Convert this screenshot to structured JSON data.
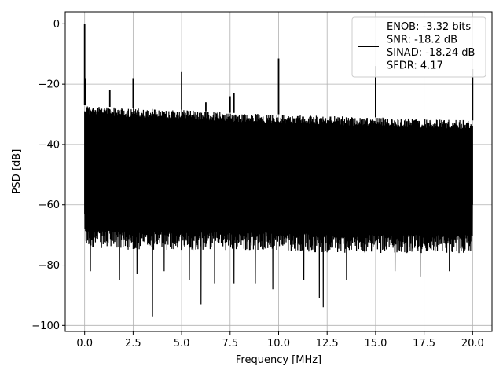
{
  "chart_data": {
    "type": "line",
    "title": "",
    "xlabel": "Frequency [MHz]",
    "ylabel": "PSD [dB]",
    "xlim": [
      -1.0,
      21.0
    ],
    "ylim": [
      -102,
      4
    ],
    "xticks": [
      0.0,
      2.5,
      5.0,
      7.5,
      10.0,
      12.5,
      15.0,
      17.5,
      20.0
    ],
    "xtick_labels": [
      "0.0",
      "2.5",
      "5.0",
      "7.5",
      "10.0",
      "12.5",
      "15.0",
      "17.5",
      "20.0"
    ],
    "yticks": [
      0,
      -20,
      -40,
      -60,
      -80,
      -100
    ],
    "ytick_labels": [
      "0",
      "−20",
      "−40",
      "−60",
      "−80",
      "−100"
    ],
    "grid": true,
    "legend_position": "top-right",
    "series": [
      {
        "name": "ENOB: -3.32 bits\nSNR: -18.2 dB\nSINAD: -18.24 dB\nSFDR: 4.17",
        "color": "#000000",
        "description": "noise floor PSD with spurs",
        "noise_envelope": {
          "x": [
            0.0,
            2.5,
            5.0,
            7.5,
            10.0,
            12.5,
            15.0,
            17.5,
            20.0
          ],
          "upper": [
            -27,
            -28,
            -28.5,
            -29.5,
            -30,
            -30.5,
            -31,
            -31.5,
            -32
          ],
          "lower": [
            -72,
            -73,
            -73,
            -73,
            -73,
            -74,
            -74,
            -74,
            -74
          ]
        },
        "deep_nulls": [
          {
            "x": 0.3,
            "y": -82
          },
          {
            "x": 1.8,
            "y": -85
          },
          {
            "x": 2.7,
            "y": -83
          },
          {
            "x": 3.5,
            "y": -97
          },
          {
            "x": 4.1,
            "y": -82
          },
          {
            "x": 5.4,
            "y": -85
          },
          {
            "x": 6.0,
            "y": -93
          },
          {
            "x": 6.7,
            "y": -86
          },
          {
            "x": 7.7,
            "y": -86
          },
          {
            "x": 8.8,
            "y": -86
          },
          {
            "x": 9.7,
            "y": -88
          },
          {
            "x": 11.3,
            "y": -85
          },
          {
            "x": 12.1,
            "y": -91
          },
          {
            "x": 12.3,
            "y": -94
          },
          {
            "x": 13.5,
            "y": -85
          },
          {
            "x": 16.0,
            "y": -82
          },
          {
            "x": 17.3,
            "y": -84
          },
          {
            "x": 18.8,
            "y": -82
          }
        ],
        "spurs": [
          {
            "x": 0.0,
            "y": 0
          },
          {
            "x": 0.05,
            "y": -18
          },
          {
            "x": 1.3,
            "y": -22
          },
          {
            "x": 2.5,
            "y": -18
          },
          {
            "x": 5.0,
            "y": -16
          },
          {
            "x": 6.25,
            "y": -26
          },
          {
            "x": 7.5,
            "y": -24
          },
          {
            "x": 7.7,
            "y": -23
          },
          {
            "x": 10.0,
            "y": -11.5
          },
          {
            "x": 15.0,
            "y": -14
          },
          {
            "x": 20.0,
            "y": -15
          }
        ]
      }
    ]
  }
}
